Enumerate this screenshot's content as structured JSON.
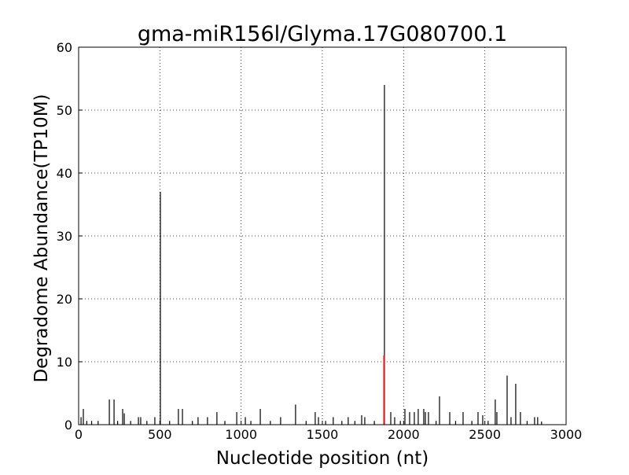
{
  "chart_data": {
    "type": "stem",
    "title": "gma-miR156l/Glyma.17G080700.1",
    "x_label": "Nucleotide position (nt)",
    "y_label": "Degradome Abundance(TP10M)",
    "xlim": [
      0,
      3000
    ],
    "xticks": [
      0,
      500,
      1000,
      1500,
      2000,
      2500,
      3000
    ],
    "ylim": [
      0,
      60
    ],
    "yticks": [
      0,
      10,
      20,
      30,
      40,
      50,
      60
    ],
    "grid": true,
    "series": [
      {
        "color": "#000000",
        "x": [
          15,
          29,
          50,
          80,
          120,
          189,
          218,
          240,
          271,
          281,
          320,
          368,
          382,
          420,
          469,
          503,
          560,
          614,
          639,
          700,
          735,
          793,
          851,
          900,
          973,
          1026,
          1060,
          1118,
          1180,
          1243,
          1335,
          1400,
          1456,
          1476,
          1520,
          1567,
          1620,
          1659,
          1700,
          1742,
          1761,
          1820,
          1882,
          1921,
          1945,
          1980,
          2008,
          2037,
          2066,
          2090,
          2124,
          2134,
          2153,
          2200,
          2221,
          2284,
          2320,
          2366,
          2420,
          2458,
          2487,
          2520,
          2564,
          2574,
          2637,
          2661,
          2690,
          2719,
          2760,
          2806,
          2825,
          2849
        ],
        "values": [
          1.2,
          2.5,
          0.6,
          0.6,
          0.6,
          4,
          4,
          0.6,
          2.5,
          1.8,
          0.6,
          1.2,
          1.2,
          0.6,
          1.2,
          37,
          0.6,
          2.5,
          2.5,
          0.6,
          1.2,
          1.2,
          2,
          0.6,
          2,
          1.2,
          0.6,
          2.5,
          0.6,
          1.2,
          3.2,
          0.6,
          2,
          1.2,
          0.6,
          1.2,
          0.6,
          1.2,
          0.6,
          1.5,
          1.2,
          0.6,
          54,
          2,
          1.2,
          0.6,
          2.5,
          2,
          2,
          2.5,
          2.5,
          2,
          2,
          0.6,
          4.5,
          2,
          0.6,
          2,
          0.6,
          2,
          1.5,
          0.6,
          4,
          2,
          7.8,
          1.2,
          6.5,
          2,
          0.6,
          1.2,
          1.2,
          0.5
        ]
      },
      {
        "color": "#ff0000",
        "x": [
          1880
        ],
        "values": [
          11
        ]
      }
    ]
  }
}
